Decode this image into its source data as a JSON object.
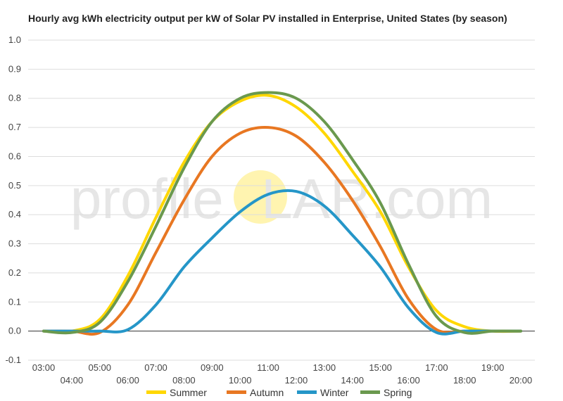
{
  "chart_data": {
    "type": "line",
    "title": "Hourly avg kWh electricity output per kW of Solar PV installed in Enterprise, United States (by season)",
    "xlabel": "",
    "ylabel": "",
    "ylim": [
      -0.1,
      1.0
    ],
    "yticks": [
      "1.0",
      "0.9",
      "0.8",
      "0.7",
      "0.6",
      "0.5",
      "0.4",
      "0.3",
      "0.2",
      "0.1",
      "0.0",
      "-0.1"
    ],
    "x": [
      "03:00",
      "04:00",
      "05:00",
      "06:00",
      "07:00",
      "08:00",
      "09:00",
      "10:00",
      "11:00",
      "12:00",
      "13:00",
      "14:00",
      "15:00",
      "16:00",
      "17:00",
      "18:00",
      "19:00",
      "20:00"
    ],
    "grid": true,
    "legend": "bottom",
    "watermark": {
      "prefix": "profile",
      "s": "S",
      "suffix": "LAR.com",
      "sun_color": "#fff4b0"
    },
    "series": [
      {
        "name": "Summer",
        "color": "#ffd700",
        "values": [
          0.0,
          0.0,
          0.04,
          0.19,
          0.39,
          0.58,
          0.72,
          0.79,
          0.81,
          0.77,
          0.68,
          0.55,
          0.41,
          0.22,
          0.07,
          0.015,
          0.0,
          0.0
        ]
      },
      {
        "name": "Autumn",
        "color": "#e87722",
        "values": [
          0.0,
          0.0,
          -0.005,
          0.09,
          0.27,
          0.45,
          0.6,
          0.68,
          0.7,
          0.67,
          0.58,
          0.45,
          0.29,
          0.11,
          0.005,
          0.0,
          0.0,
          0.0
        ]
      },
      {
        "name": "Winter",
        "color": "#2596c8",
        "values": [
          0.0,
          0.0,
          0.0,
          0.005,
          0.09,
          0.22,
          0.32,
          0.41,
          0.47,
          0.48,
          0.43,
          0.33,
          0.22,
          0.08,
          -0.005,
          0.0,
          0.0,
          0.0
        ]
      },
      {
        "name": "Spring",
        "color": "#6a994e",
        "values": [
          0.0,
          -0.005,
          0.03,
          0.17,
          0.36,
          0.56,
          0.72,
          0.8,
          0.82,
          0.8,
          0.72,
          0.59,
          0.44,
          0.23,
          0.05,
          -0.005,
          0.0,
          0.0
        ]
      }
    ]
  }
}
